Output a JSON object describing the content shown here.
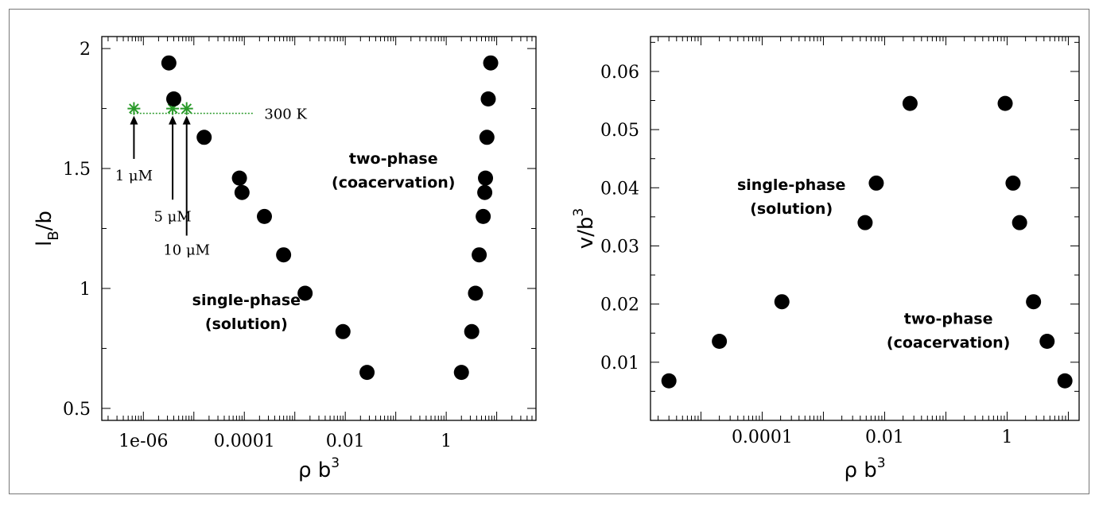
{
  "chart_data": [
    {
      "type": "scatter",
      "x_scale": "log",
      "xlabel": {
        "main": "ρ b",
        "sup": "3"
      },
      "ylabel": {
        "main": "l",
        "sub": "B",
        "tail": "/b"
      },
      "xlim": [
        1.5e-07,
        60
      ],
      "ylim": [
        0.45,
        2.05
      ],
      "x_ticks": [
        {
          "value": 1e-06,
          "label": "1e-06"
        },
        {
          "value": 0.0001,
          "label": "0.0001"
        },
        {
          "value": 0.01,
          "label": "0.01"
        },
        {
          "value": 1,
          "label": "1"
        }
      ],
      "y_ticks": [
        {
          "value": 0.5,
          "label": "0.5"
        },
        {
          "value": 1,
          "label": "1"
        },
        {
          "value": 1.5,
          "label": "1.5"
        },
        {
          "value": 2,
          "label": "2"
        }
      ],
      "series": [
        {
          "points": [
            {
              "x": 3.2e-06,
              "y": 1.94
            },
            {
              "x": 4e-06,
              "y": 1.79
            },
            {
              "x": 1.6e-05,
              "y": 1.63
            },
            {
              "x": 8e-05,
              "y": 1.46
            },
            {
              "x": 9e-05,
              "y": 1.4
            },
            {
              "x": 0.00025,
              "y": 1.3
            },
            {
              "x": 0.0006,
              "y": 1.14
            },
            {
              "x": 0.0016,
              "y": 0.98
            },
            {
              "x": 0.009,
              "y": 0.82
            },
            {
              "x": 0.027,
              "y": 0.65
            },
            {
              "x": 2.0,
              "y": 0.65
            },
            {
              "x": 3.2,
              "y": 0.82
            },
            {
              "x": 3.8,
              "y": 0.98
            },
            {
              "x": 4.5,
              "y": 1.14
            },
            {
              "x": 5.4,
              "y": 1.3
            },
            {
              "x": 5.8,
              "y": 1.4
            },
            {
              "x": 6.0,
              "y": 1.46
            },
            {
              "x": 6.4,
              "y": 1.63
            },
            {
              "x": 6.8,
              "y": 1.79
            },
            {
              "x": 7.6,
              "y": 1.94
            }
          ]
        }
      ],
      "reference_line": {
        "y": 1.73,
        "x_from": 5.5e-07,
        "x_to": 0.00015,
        "label": "300 K",
        "color": "#2a9a2a"
      },
      "marked_points": [
        {
          "x": 6.5e-07,
          "y": 1.75,
          "label": "1 μM",
          "arrow_tail_y": 1.54,
          "text_y": 1.45
        },
        {
          "x": 3.8e-06,
          "y": 1.75,
          "label": "5 μM",
          "arrow_tail_y": 1.37,
          "text_y": 1.28
        },
        {
          "x": 7.2e-06,
          "y": 1.75,
          "label": "10 μM",
          "arrow_tail_y": 1.22,
          "text_y": 1.14
        }
      ],
      "regions": [
        {
          "lines": [
            "two-phase",
            "(coacervation)"
          ],
          "x": 0.09,
          "y": 1.52
        },
        {
          "lines": [
            "single-phase",
            "(solution)"
          ],
          "x": 0.00011,
          "y": 0.93
        }
      ],
      "marker_color": "#000000",
      "grid": false
    },
    {
      "type": "scatter",
      "x_scale": "log",
      "xlabel": {
        "main": "ρ b",
        "sup": "3"
      },
      "ylabel": {
        "main": "v/b",
        "sup": "3"
      },
      "xlim": [
        1.5e-06,
        15
      ],
      "ylim": [
        0.0,
        0.066
      ],
      "x_ticks": [
        {
          "value": 0.0001,
          "label": "0.0001"
        },
        {
          "value": 0.01,
          "label": "0.01"
        },
        {
          "value": 1,
          "label": "1"
        }
      ],
      "y_ticks": [
        {
          "value": 0.01,
          "label": "0.01"
        },
        {
          "value": 0.02,
          "label": "0.02"
        },
        {
          "value": 0.03,
          "label": "0.03"
        },
        {
          "value": 0.04,
          "label": "0.04"
        },
        {
          "value": 0.05,
          "label": "0.05"
        },
        {
          "value": 0.06,
          "label": "0.06"
        }
      ],
      "series": [
        {
          "points": [
            {
              "x": 3e-06,
              "y": 0.0068
            },
            {
              "x": 2e-05,
              "y": 0.0136
            },
            {
              "x": 0.00021,
              "y": 0.0204
            },
            {
              "x": 0.0048,
              "y": 0.034
            },
            {
              "x": 0.0073,
              "y": 0.0408
            },
            {
              "x": 0.026,
              "y": 0.0545
            },
            {
              "x": 0.93,
              "y": 0.0545
            },
            {
              "x": 1.25,
              "y": 0.0408
            },
            {
              "x": 1.6,
              "y": 0.034
            },
            {
              "x": 2.7,
              "y": 0.0204
            },
            {
              "x": 4.5,
              "y": 0.0136
            },
            {
              "x": 8.8,
              "y": 0.0068
            }
          ]
        }
      ],
      "regions": [
        {
          "lines": [
            "single-phase",
            "(solution)"
          ],
          "x": 0.0003,
          "y": 0.0396
        },
        {
          "lines": [
            "two-phase",
            "(coacervation)"
          ],
          "x": 0.11,
          "y": 0.0166
        }
      ],
      "marker_color": "#000000",
      "grid": false
    }
  ]
}
